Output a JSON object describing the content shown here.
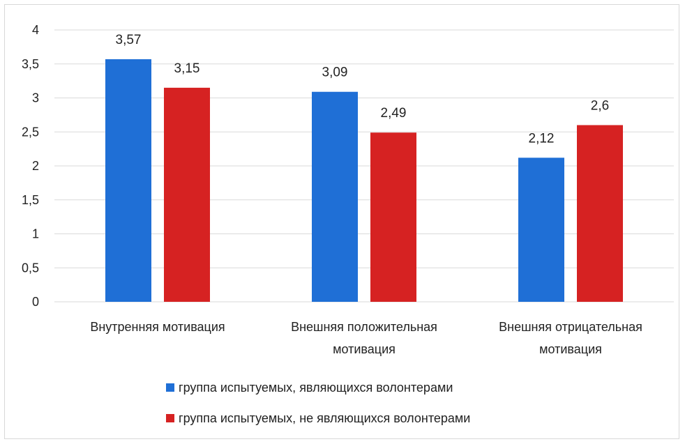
{
  "chart_data": {
    "type": "bar",
    "title": "",
    "xlabel": "",
    "ylabel": "",
    "ylim": [
      0,
      4
    ],
    "yticks": [
      "0",
      "0,5",
      "1",
      "1,5",
      "2",
      "2,5",
      "3",
      "3,5",
      "4"
    ],
    "ytick_values": [
      0,
      0.5,
      1,
      1.5,
      2,
      2.5,
      3,
      3.5,
      4
    ],
    "grid": "horizontal",
    "legend_position": "bottom",
    "categories": [
      [
        "Внутренняя мотивация"
      ],
      [
        "Внешняя положительная",
        "мотивация"
      ],
      [
        "Внешняя отрицательная",
        "мотивация"
      ]
    ],
    "series": [
      {
        "name": "группа испытуемых, являющихся волонтерами",
        "color": "#1f6fd6",
        "values": [
          3.57,
          3.09,
          2.12
        ],
        "labels": [
          "3,57",
          "3,09",
          "2,12"
        ]
      },
      {
        "name": "группа испытуемых, не являющихся волонтерами",
        "color": "#d62222",
        "values": [
          3.15,
          2.49,
          2.6
        ],
        "labels": [
          "3,15",
          "2,49",
          "2,6"
        ]
      }
    ]
  }
}
